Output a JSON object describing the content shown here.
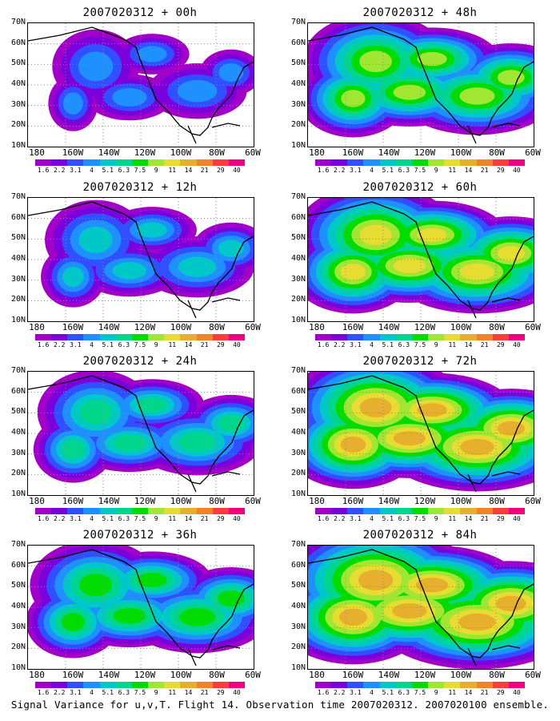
{
  "panels": [
    {
      "title": "2007020312 + 00h",
      "level": 0
    },
    {
      "title": "2007020312 + 48h",
      "level": 4
    },
    {
      "title": "2007020312 + 12h",
      "level": 1
    },
    {
      "title": "2007020312 + 60h",
      "level": 5
    },
    {
      "title": "2007020312 + 24h",
      "level": 2
    },
    {
      "title": "2007020312 + 72h",
      "level": 6
    },
    {
      "title": "2007020312 + 36h",
      "level": 3
    },
    {
      "title": "2007020312 + 84h",
      "level": 7
    }
  ],
  "lat_labels": [
    "70N",
    "60N",
    "50N",
    "40N",
    "30N",
    "20N",
    "10N"
  ],
  "lon_labels": [
    "180",
    "160W",
    "140W",
    "120W",
    "100W",
    "80W",
    "60W"
  ],
  "colorbar": {
    "labels": [
      "1.6",
      "2.2",
      "3.1",
      "4",
      "5.1",
      "6.3",
      "7.5",
      "9",
      "11",
      "14",
      "21",
      "29",
      "40"
    ],
    "colors": [
      "#a000c8",
      "#7a00dc",
      "#3050ff",
      "#1e90ff",
      "#00c8c8",
      "#00d78c",
      "#00dc00",
      "#a0e632",
      "#e6dc32",
      "#e6af2d",
      "#f08228",
      "#fa3c3c",
      "#f00082"
    ]
  },
  "footer": "Signal Variance for u,v,T. Flight 14. Observation time 2007020312. 2007020100 ensemble."
}
